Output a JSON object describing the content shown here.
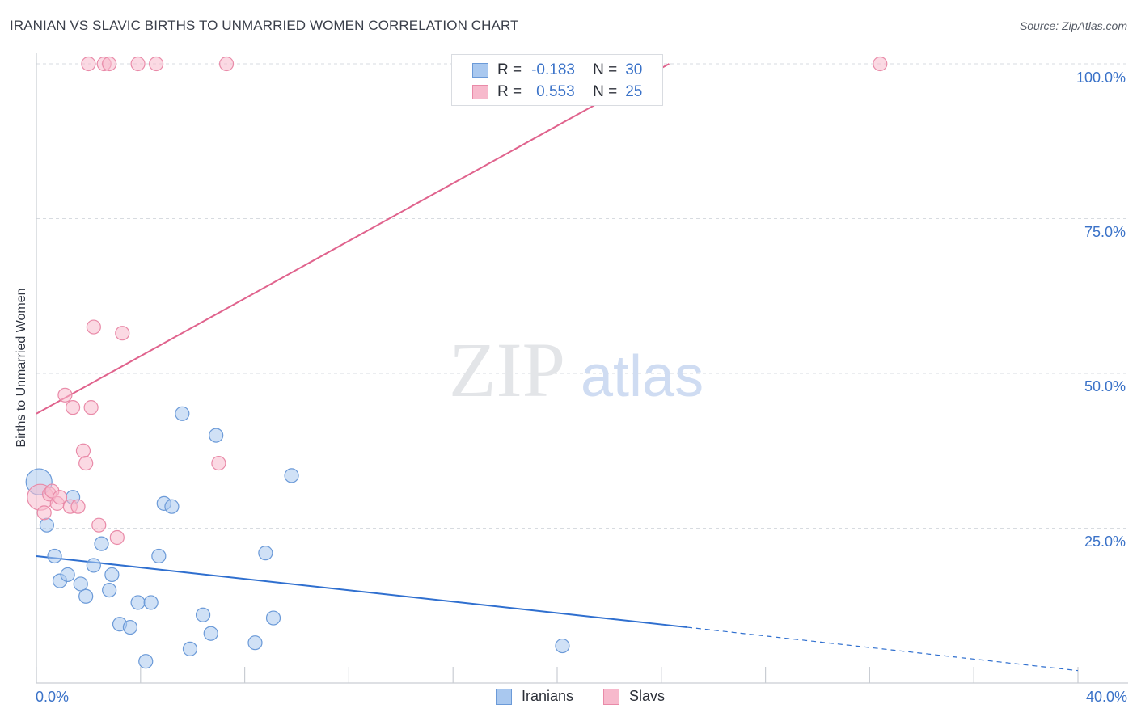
{
  "title": "IRANIAN VS SLAVIC BIRTHS TO UNMARRIED WOMEN CORRELATION CHART",
  "source": "Source: ZipAtlas.com",
  "legend": {
    "rows": [
      {
        "r_label": "R =",
        "r_value": "-0.183",
        "n_label": "N =",
        "n_value": "30"
      },
      {
        "r_label": "R =",
        "r_value": "0.553",
        "n_label": "N =",
        "n_value": "25"
      }
    ]
  },
  "bottom_legend": {
    "iranians": "Iranians",
    "slavs": "Slavs"
  },
  "watermark": {
    "zip": "ZIP",
    "atlas": "atlas"
  },
  "colors": {
    "iranians_fill": "#a9c8ef",
    "iranians_stroke": "#6b9ad8",
    "iranians_line": "#2f6fcf",
    "slavs_fill": "#f7b9cc",
    "slavs_stroke": "#e98aa8",
    "slavs_line": "#e0638d",
    "tick_text": "#3a72c8",
    "grid": "#d7dbe0"
  },
  "chart_data": {
    "type": "scatter",
    "title": "IRANIAN VS SLAVIC BIRTHS TO UNMARRIED WOMEN CORRELATION CHART",
    "xlabel": "",
    "ylabel": "Births to Unmarried Women",
    "xlim": [
      0,
      40
    ],
    "ylim": [
      0,
      104
    ],
    "x_tick_labels": [
      "0.0%",
      "40.0%"
    ],
    "y_ticks": [
      25,
      50,
      75,
      100
    ],
    "y_tick_labels": [
      "25.0%",
      "50.0%",
      "75.0%",
      "100.0%"
    ],
    "series": [
      {
        "name": "Iranians",
        "r": -0.183,
        "n": 30,
        "points": [
          {
            "x": 0.1,
            "y": 32.5,
            "big": true
          },
          {
            "x": 0.4,
            "y": 25.5
          },
          {
            "x": 0.7,
            "y": 20.5
          },
          {
            "x": 0.9,
            "y": 16.5
          },
          {
            "x": 1.2,
            "y": 17.5
          },
          {
            "x": 1.4,
            "y": 30.0
          },
          {
            "x": 1.7,
            "y": 16.0
          },
          {
            "x": 1.9,
            "y": 14.0
          },
          {
            "x": 2.2,
            "y": 19.0
          },
          {
            "x": 2.5,
            "y": 22.5
          },
          {
            "x": 2.8,
            "y": 15.0
          },
          {
            "x": 2.9,
            "y": 17.5
          },
          {
            "x": 3.2,
            "y": 9.5
          },
          {
            "x": 3.6,
            "y": 9.0
          },
          {
            "x": 3.9,
            "y": 13.0
          },
          {
            "x": 4.2,
            "y": 3.5
          },
          {
            "x": 4.4,
            "y": 13.0
          },
          {
            "x": 4.7,
            "y": 20.5
          },
          {
            "x": 4.9,
            "y": 29.0
          },
          {
            "x": 5.2,
            "y": 28.5
          },
          {
            "x": 5.6,
            "y": 43.5
          },
          {
            "x": 5.9,
            "y": 5.5
          },
          {
            "x": 6.4,
            "y": 11.0
          },
          {
            "x": 6.7,
            "y": 8.0
          },
          {
            "x": 6.9,
            "y": 40.0
          },
          {
            "x": 8.4,
            "y": 6.5
          },
          {
            "x": 8.8,
            "y": 21.0
          },
          {
            "x": 9.1,
            "y": 10.5
          },
          {
            "x": 9.8,
            "y": 33.5
          },
          {
            "x": 20.2,
            "y": 6.0
          }
        ],
        "trend": {
          "x1": 0,
          "y1": 20.5,
          "x2": 25.0,
          "y2": 9.0,
          "dash_to_x": 40,
          "dash_to_y": 2.0
        }
      },
      {
        "name": "Slavs",
        "r": 0.553,
        "n": 25,
        "points": [
          {
            "x": 0.15,
            "y": 30.0,
            "big": true
          },
          {
            "x": 0.3,
            "y": 27.5
          },
          {
            "x": 0.5,
            "y": 30.5
          },
          {
            "x": 0.6,
            "y": 31.0
          },
          {
            "x": 0.8,
            "y": 29.0
          },
          {
            "x": 0.9,
            "y": 30.0
          },
          {
            "x": 1.1,
            "y": 46.5
          },
          {
            "x": 1.3,
            "y": 28.5
          },
          {
            "x": 1.4,
            "y": 44.5
          },
          {
            "x": 1.6,
            "y": 28.5
          },
          {
            "x": 1.8,
            "y": 37.5
          },
          {
            "x": 1.9,
            "y": 35.5
          },
          {
            "x": 2.1,
            "y": 44.5
          },
          {
            "x": 2.2,
            "y": 57.5
          },
          {
            "x": 2.4,
            "y": 25.5
          },
          {
            "x": 2.6,
            "y": 100.0
          },
          {
            "x": 2.8,
            "y": 100.0
          },
          {
            "x": 3.1,
            "y": 23.5
          },
          {
            "x": 3.3,
            "y": 56.5
          },
          {
            "x": 3.9,
            "y": 100.0
          },
          {
            "x": 4.6,
            "y": 100.0
          },
          {
            "x": 7.0,
            "y": 35.5
          },
          {
            "x": 7.3,
            "y": 100.0
          },
          {
            "x": 32.4,
            "y": 100.0
          },
          {
            "x": 2.0,
            "y": 100.0
          }
        ],
        "trend": {
          "x1": 0,
          "y1": 43.5,
          "x2": 24.3,
          "y2": 100.0
        }
      }
    ]
  }
}
